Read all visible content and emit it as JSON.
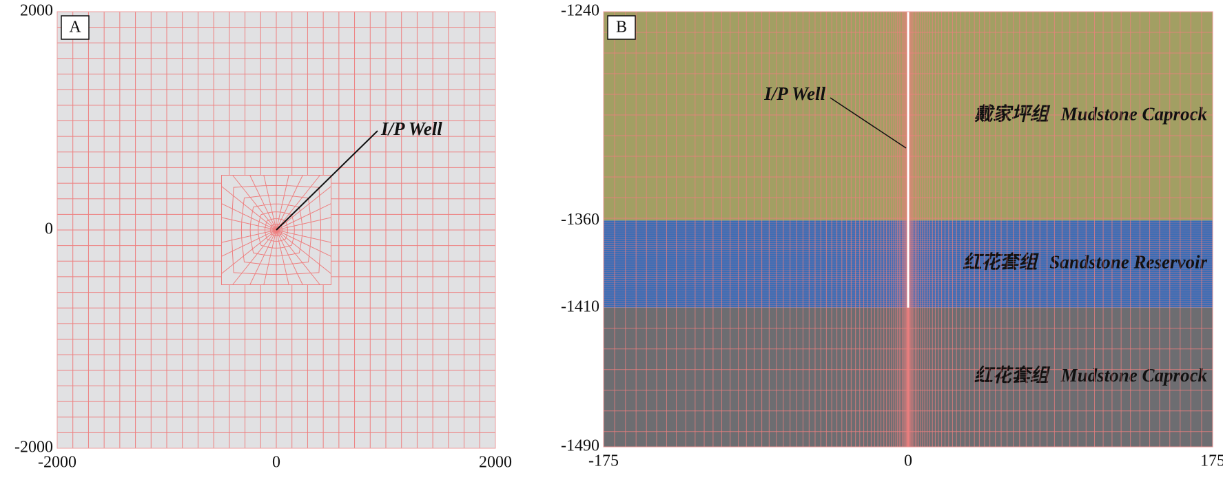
{
  "panels": [
    {
      "label": "A",
      "xlim": [
        -2000,
        2000
      ],
      "ylim": [
        -2000,
        2000
      ],
      "xticks": [
        -2000,
        0,
        2000
      ],
      "yticks": [
        -2000,
        0,
        2000
      ],
      "annotation": "I/P Well"
    },
    {
      "label": "B",
      "xlim": [
        -175,
        175
      ],
      "ylim": [
        -1490,
        -1240
      ],
      "xticks": [
        -175,
        0,
        175
      ],
      "yticks": [
        -1240,
        -1360,
        -1410,
        -1490
      ],
      "annotation": "I/P Well",
      "layers": [
        {
          "name_cn": "戴家坪组",
          "name": "Mudstone Caprock",
          "color": "#a29f63"
        },
        {
          "name_cn": "红花套组",
          "name": "Sandstone Reservoir",
          "color": "#3b6db6"
        },
        {
          "name_cn": "红花套组",
          "name": "Mudstone Caprock",
          "color": "#6d6d71"
        }
      ]
    }
  ]
}
